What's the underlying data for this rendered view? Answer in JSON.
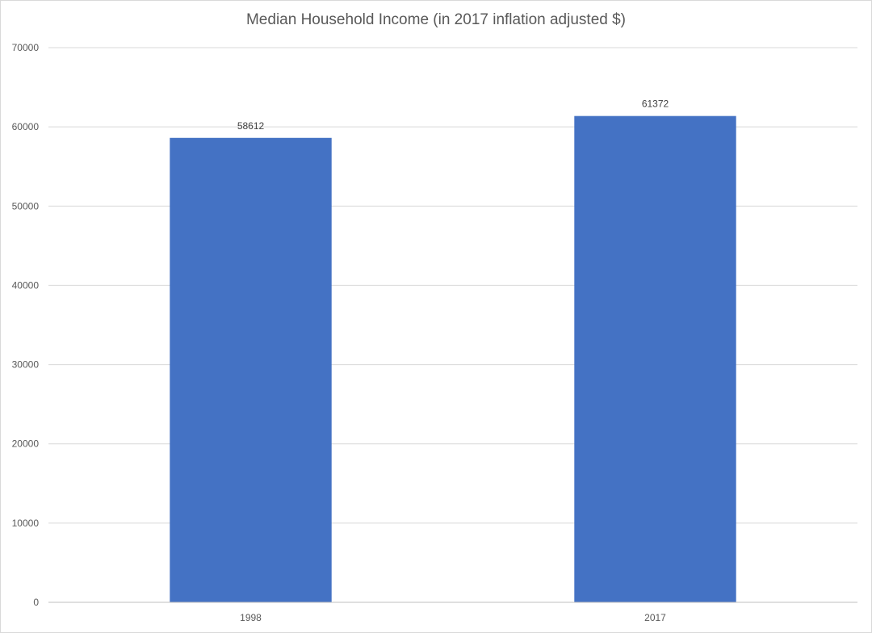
{
  "chart_data": {
    "type": "bar",
    "title": "Median Household Income (in 2017 inflation adjusted $)",
    "categories": [
      "1998",
      "2017"
    ],
    "values": [
      58612,
      61372
    ],
    "data_labels": [
      "58612",
      "61372"
    ],
    "ylim": [
      0,
      70000
    ],
    "yticks": [
      0,
      10000,
      20000,
      30000,
      40000,
      50000,
      60000,
      70000
    ],
    "ytick_labels": [
      "0",
      "10000",
      "20000",
      "30000",
      "40000",
      "50000",
      "60000",
      "70000"
    ],
    "grid": true,
    "legend": "none",
    "bar_color": "#4472C4",
    "grid_color": "#d9d9d9",
    "axis_color": "#bfbfbf"
  }
}
